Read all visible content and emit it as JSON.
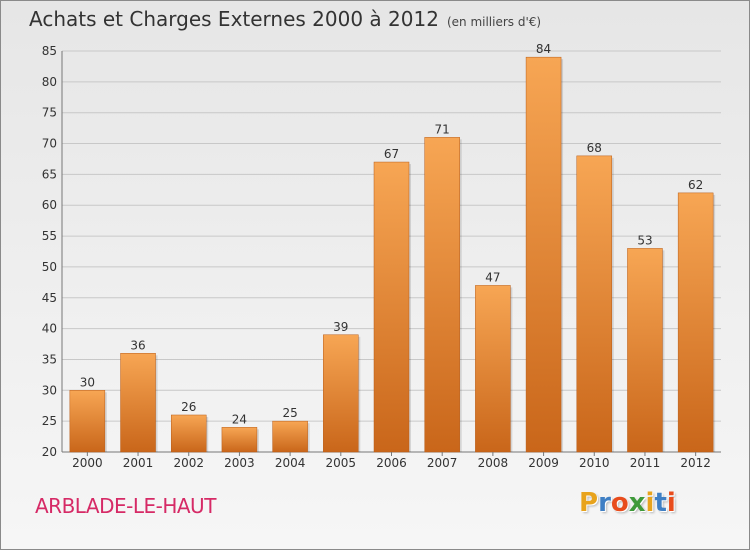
{
  "chart_data": {
    "type": "bar",
    "title": "Achats et Charges Externes 2000 à 2012",
    "subtitle": "(en milliers d'€)",
    "categories": [
      "2000",
      "2001",
      "2002",
      "2003",
      "2004",
      "2005",
      "2006",
      "2007",
      "2008",
      "2009",
      "2010",
      "2011",
      "2012"
    ],
    "values": [
      30,
      36,
      26,
      24,
      25,
      39,
      67,
      71,
      47,
      84,
      68,
      53,
      62
    ],
    "ylim": [
      20,
      85
    ],
    "yticks": [
      20,
      25,
      30,
      35,
      40,
      45,
      50,
      55,
      60,
      65,
      70,
      75,
      80,
      85
    ],
    "grid": true,
    "colors": {
      "bar_light": "#f7a654",
      "bar_dark": "#c9661a",
      "grid": "#c8c8c8",
      "axis": "#777777"
    }
  },
  "footer": {
    "location": "ARBLADE-LE-HAUT",
    "brand": "Proxiti"
  },
  "brand_colors": [
    "#e8a31c",
    "#3f7fc4",
    "#e84c1c",
    "#3f9a3a",
    "#e8a31c",
    "#3f7fc4",
    "#e84c1c"
  ]
}
